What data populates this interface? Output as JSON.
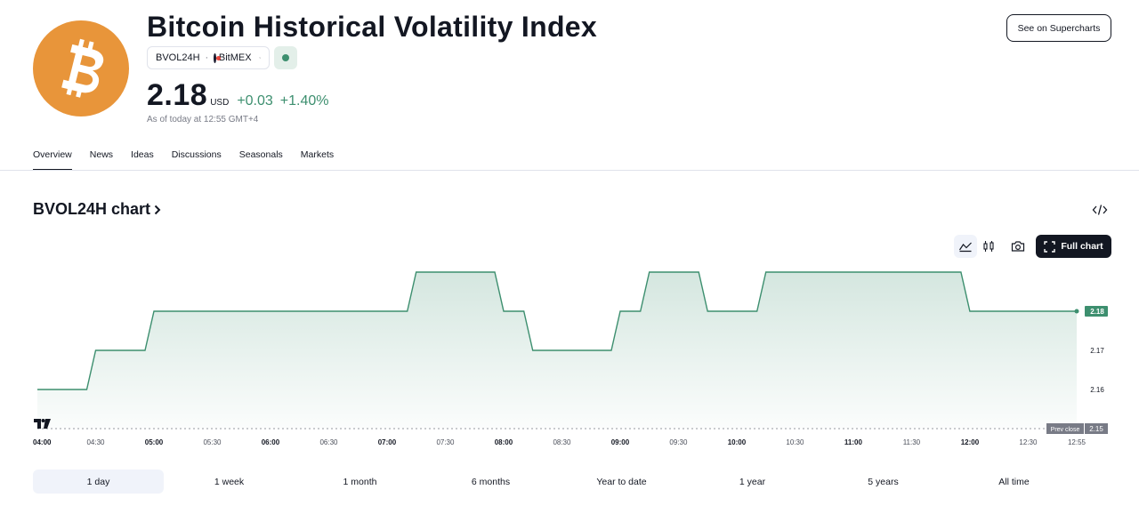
{
  "header": {
    "title": "Bitcoin Historical Volatility Index",
    "symbol": "BVOL24H",
    "exchange": "BitMEX",
    "price": "2.18",
    "currency": "USD",
    "change_abs": "+0.03",
    "change_pct": "+1.40%",
    "as_of": "As of today at 12:55 GMT+4",
    "see_button": "See on Supercharts",
    "logo_icon": "bitcoin-icon",
    "accent_color": "#3d8f6f",
    "logo_color": "#e8953a"
  },
  "tabs": [
    {
      "label": "Overview",
      "active": true
    },
    {
      "label": "News",
      "active": false
    },
    {
      "label": "Ideas",
      "active": false
    },
    {
      "label": "Discussions",
      "active": false
    },
    {
      "label": "Seasonals",
      "active": false
    },
    {
      "label": "Markets",
      "active": false
    }
  ],
  "chart_section": {
    "title": "BVOL24H chart",
    "full_chart_label": "Full chart",
    "embed_icon": "code-embed-icon",
    "area_icon": "area-chart-icon",
    "candles_icon": "candles-icon",
    "camera_icon": "camera-icon",
    "fullscreen_icon": "fullscreen-icon"
  },
  "chart_data": {
    "type": "line",
    "style": "step area",
    "x": [
      "04:00",
      "04:15",
      "04:30",
      "04:45",
      "05:00",
      "05:15",
      "05:30",
      "05:45",
      "06:00",
      "06:15",
      "06:30",
      "06:45",
      "07:00",
      "07:15",
      "07:30",
      "07:45",
      "08:00",
      "08:15",
      "08:30",
      "08:45",
      "09:00",
      "09:15",
      "09:30",
      "09:45",
      "10:00",
      "10:15",
      "10:30",
      "10:45",
      "11:00",
      "11:15",
      "11:30",
      "11:45",
      "12:00",
      "12:15",
      "12:30",
      "12:45",
      "12:55"
    ],
    "series": [
      {
        "values": [
          2.16,
          2.16,
          2.17,
          2.17,
          2.18,
          2.18,
          2.18,
          2.18,
          2.18,
          2.18,
          2.18,
          2.18,
          2.18,
          2.19,
          2.19,
          2.19,
          2.18,
          2.17,
          2.17,
          2.17,
          2.18,
          2.19,
          2.19,
          2.18,
          2.18,
          2.19,
          2.19,
          2.19,
          2.19,
          2.19,
          2.19,
          2.19,
          2.18,
          2.18,
          2.18,
          2.18,
          2.18
        ]
      }
    ],
    "x_ticks": [
      "04:00",
      "04:30",
      "05:00",
      "05:30",
      "06:00",
      "06:30",
      "07:00",
      "07:30",
      "08:00",
      "08:30",
      "09:00",
      "09:30",
      "10:00",
      "10:30",
      "11:00",
      "11:30",
      "12:00",
      "12:30",
      "12:55"
    ],
    "x_ticks_bold": [
      "04:00",
      "05:00",
      "06:00",
      "07:00",
      "08:00",
      "09:00",
      "10:00",
      "11:00",
      "12:00"
    ],
    "y_ticks": [
      "2.16",
      "2.17"
    ],
    "ylim": [
      2.15,
      2.19
    ],
    "last_value_label": "2.18",
    "prev_close_label": "Prev close",
    "prev_close_value": "2.15",
    "line_color": "#3d8f6f",
    "grid": false
  },
  "ranges": [
    {
      "label": "1 day",
      "active": true
    },
    {
      "label": "1 week",
      "active": false
    },
    {
      "label": "1 month",
      "active": false
    },
    {
      "label": "6 months",
      "active": false
    },
    {
      "label": "Year to date",
      "active": false
    },
    {
      "label": "1 year",
      "active": false
    },
    {
      "label": "5 years",
      "active": false
    },
    {
      "label": "All time",
      "active": false
    }
  ]
}
